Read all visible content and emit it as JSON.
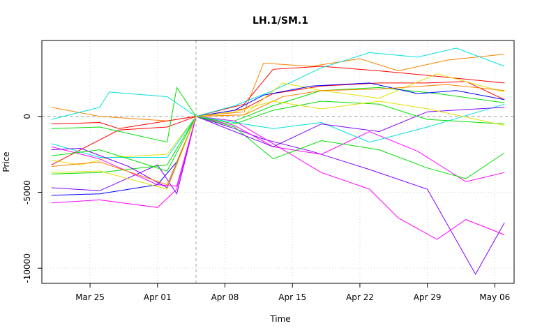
{
  "chart_data": {
    "type": "line",
    "title": "LH.1/SM.1",
    "xlabel": "Time",
    "ylabel": "Price",
    "xlim": [
      "2024-03-20",
      "2024-05-08"
    ],
    "ylim": [
      -11000,
      5000
    ],
    "x_ticks": [
      {
        "label": "Mar 25",
        "date": "2024-03-25"
      },
      {
        "label": "Apr 01",
        "date": "2024-04-01"
      },
      {
        "label": "Apr 08",
        "date": "2024-04-08"
      },
      {
        "label": "Apr 15",
        "date": "2024-04-15"
      },
      {
        "label": "Apr 22",
        "date": "2024-04-22"
      },
      {
        "label": "Apr 29",
        "date": "2024-04-29"
      },
      {
        "label": "May 06",
        "date": "2024-05-06"
      }
    ],
    "y_ticks": [
      {
        "label": "-10000",
        "value": -10000
      },
      {
        "label": "-5000",
        "value": -5000
      },
      {
        "label": "0",
        "value": 0
      }
    ],
    "reference_lines": {
      "y": 0,
      "x": "2024-04-05"
    },
    "grid": true,
    "colors": {
      "red": "#ff0000",
      "orange": "#ff8000",
      "yellow": "#e0e000",
      "green": "#00e000",
      "cyan": "#00e0e0",
      "blue": "#0000ff",
      "violet": "#8000ff",
      "magenta": "#ff00ff"
    },
    "series": [
      {
        "color": "#ff8000",
        "x": [
          "2024-03-21",
          "2024-03-26",
          "2024-04-02",
          "2024-04-05",
          "2024-04-10",
          "2024-04-12",
          "2024-04-17",
          "2024-04-22",
          "2024-04-26",
          "2024-05-01",
          "2024-05-07"
        ],
        "y": [
          600,
          0,
          -300,
          0,
          300,
          3500,
          3300,
          3800,
          3000,
          3700,
          4100
        ]
      },
      {
        "color": "#ff0000",
        "x": [
          "2024-03-21",
          "2024-03-26",
          "2024-03-28",
          "2024-04-02",
          "2024-04-05",
          "2024-04-10",
          "2024-04-13",
          "2024-04-18",
          "2024-04-24",
          "2024-04-29",
          "2024-05-07"
        ],
        "y": [
          -500,
          -400,
          -800,
          -300,
          0,
          800,
          3100,
          3300,
          3000,
          2700,
          2200
        ]
      },
      {
        "color": "#ff0000",
        "x": [
          "2024-03-21",
          "2024-03-24",
          "2024-03-28",
          "2024-04-02",
          "2024-04-05",
          "2024-04-10",
          "2024-04-13",
          "2024-04-18",
          "2024-04-24",
          "2024-04-29",
          "2024-05-03",
          "2024-05-07"
        ],
        "y": [
          -3200,
          -2200,
          -900,
          -700,
          0,
          500,
          1500,
          2000,
          2200,
          2200,
          2300,
          1100
        ]
      },
      {
        "color": "#00e0e0",
        "x": [
          "2024-03-21",
          "2024-03-26",
          "2024-03-27",
          "2024-04-02",
          "2024-04-05",
          "2024-04-09",
          "2024-04-13",
          "2024-04-18",
          "2024-04-23",
          "2024-04-28",
          "2024-05-02",
          "2024-05-07"
        ],
        "y": [
          -200,
          600,
          1600,
          1300,
          0,
          700,
          1700,
          3200,
          4200,
          3900,
          4500,
          3300
        ]
      },
      {
        "color": "#e0e000",
        "x": [
          "2024-03-21",
          "2024-03-24",
          "2024-03-27",
          "2024-04-02",
          "2024-04-05",
          "2024-04-10",
          "2024-04-14",
          "2024-04-18",
          "2024-04-24",
          "2024-04-30",
          "2024-05-07"
        ],
        "y": [
          -2900,
          -3200,
          -2700,
          -2500,
          0,
          100,
          2200,
          1700,
          1200,
          2800,
          1600
        ]
      },
      {
        "color": "#00e000",
        "x": [
          "2024-03-21",
          "2024-03-26",
          "2024-04-02",
          "2024-04-03",
          "2024-04-05",
          "2024-04-09",
          "2024-04-13",
          "2024-04-18",
          "2024-04-24",
          "2024-04-30",
          "2024-05-07"
        ],
        "y": [
          -800,
          -700,
          -1700,
          1900,
          0,
          -300,
          700,
          1700,
          1900,
          1500,
          900
        ]
      },
      {
        "color": "#0000ff",
        "x": [
          "2024-03-21",
          "2024-03-26",
          "2024-04-01",
          "2024-04-03",
          "2024-04-05",
          "2024-04-09",
          "2024-04-12",
          "2024-04-17",
          "2024-04-23",
          "2024-04-28",
          "2024-05-02",
          "2024-05-07"
        ],
        "y": [
          -5200,
          -5100,
          -4500,
          -3000,
          0,
          400,
          1400,
          2000,
          2200,
          1500,
          1700,
          1100
        ]
      },
      {
        "color": "#8000ff",
        "x": [
          "2024-03-21",
          "2024-03-26",
          "2024-04-01",
          "2024-04-03",
          "2024-04-05",
          "2024-04-09",
          "2024-04-12",
          "2024-04-17",
          "2024-04-23",
          "2024-04-29",
          "2024-05-04",
          "2024-05-07"
        ],
        "y": [
          -4700,
          -4900,
          -3200,
          -5100,
          0,
          -800,
          -1500,
          -2300,
          -3500,
          -4800,
          -10400,
          -7000
        ]
      },
      {
        "color": "#ff00ff",
        "x": [
          "2024-03-21",
          "2024-03-26",
          "2024-04-01",
          "2024-04-03",
          "2024-04-05",
          "2024-04-09",
          "2024-04-13",
          "2024-04-18",
          "2024-04-23",
          "2024-04-26",
          "2024-04-30",
          "2024-05-03",
          "2024-05-07"
        ],
        "y": [
          -5700,
          -5500,
          -6000,
          -4800,
          0,
          -300,
          -1800,
          -3700,
          -4800,
          -6700,
          -8100,
          -6800,
          -7800
        ]
      },
      {
        "color": "#ff00ff",
        "x": [
          "2024-03-21",
          "2024-03-26",
          "2024-04-01",
          "2024-04-03",
          "2024-04-05",
          "2024-04-09",
          "2024-04-13",
          "2024-04-18",
          "2024-04-23",
          "2024-04-28",
          "2024-05-03",
          "2024-05-07"
        ],
        "y": [
          -2000,
          -2800,
          -4500,
          -4600,
          0,
          -600,
          -2000,
          -2500,
          -1000,
          -2300,
          -4300,
          -3700
        ]
      },
      {
        "color": "#00e000",
        "x": [
          "2024-03-21",
          "2024-03-26",
          "2024-04-02",
          "2024-04-05",
          "2024-04-09",
          "2024-04-13",
          "2024-04-18",
          "2024-04-24",
          "2024-04-29",
          "2024-05-03",
          "2024-05-07"
        ],
        "y": [
          -3800,
          -3700,
          -3200,
          0,
          -700,
          -2800,
          -1600,
          -2200,
          -3400,
          -4100,
          -2400
        ]
      },
      {
        "color": "#00e0e0",
        "x": [
          "2024-03-21",
          "2024-03-26",
          "2024-04-02",
          "2024-04-05",
          "2024-04-09",
          "2024-04-13",
          "2024-04-18",
          "2024-04-23",
          "2024-04-29",
          "2024-05-07"
        ],
        "y": [
          -1800,
          -2700,
          -2700,
          0,
          -400,
          -800,
          -400,
          -1700,
          -700,
          800
        ]
      },
      {
        "color": "#8000ff",
        "x": [
          "2024-03-21",
          "2024-03-24",
          "2024-03-29",
          "2024-04-02",
          "2024-04-05",
          "2024-04-09",
          "2024-04-13",
          "2024-04-18",
          "2024-04-24",
          "2024-04-29",
          "2024-05-07"
        ],
        "y": [
          -2200,
          -2100,
          -3300,
          -4700,
          0,
          -1000,
          -2000,
          -500,
          -1000,
          300,
          600
        ]
      },
      {
        "color": "#ff8000",
        "x": [
          "2024-03-21",
          "2024-03-26",
          "2024-04-02",
          "2024-04-05",
          "2024-04-10",
          "2024-04-14",
          "2024-04-18",
          "2024-04-24",
          "2024-05-01",
          "2024-05-07"
        ],
        "y": [
          -3300,
          -3000,
          -4500,
          0,
          100,
          1300,
          1700,
          1800,
          2100,
          1700
        ]
      },
      {
        "color": "#00e000",
        "x": [
          "2024-03-21",
          "2024-03-26",
          "2024-04-02",
          "2024-04-05",
          "2024-04-09",
          "2024-04-13",
          "2024-04-18",
          "2024-04-24",
          "2024-04-29",
          "2024-05-07"
        ],
        "y": [
          -2600,
          -2200,
          -3600,
          0,
          -500,
          400,
          1000,
          800,
          -200,
          -500
        ]
      },
      {
        "color": "#e0e000",
        "x": [
          "2024-03-21",
          "2024-03-26",
          "2024-04-02",
          "2024-04-05",
          "2024-04-09",
          "2024-04-13",
          "2024-04-18",
          "2024-04-24",
          "2024-04-29",
          "2024-05-07"
        ],
        "y": [
          -3700,
          -3600,
          -4800,
          0,
          300,
          1000,
          500,
          1000,
          500,
          -600
        ]
      }
    ]
  }
}
